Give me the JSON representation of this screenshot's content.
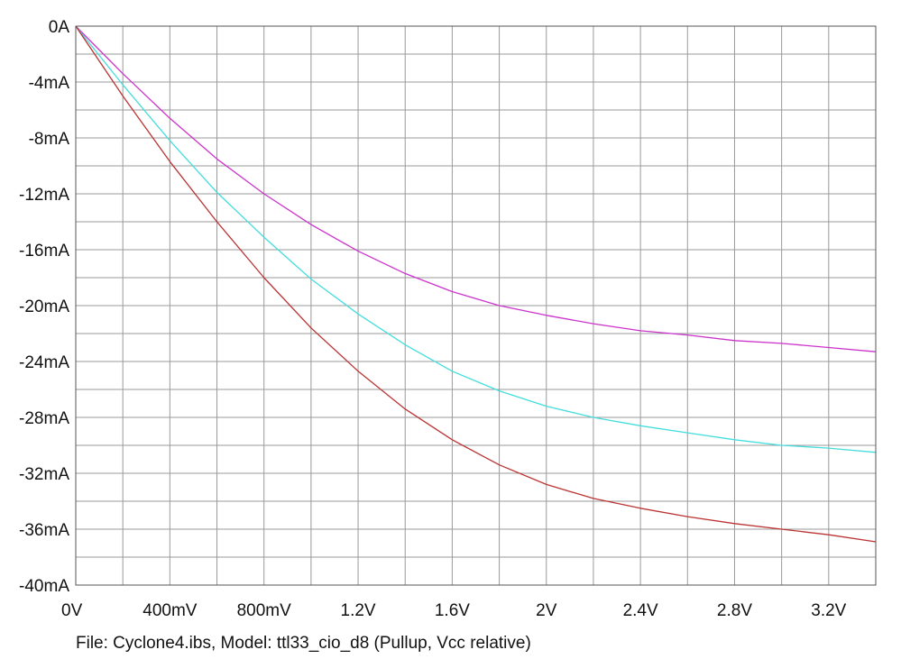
{
  "caption": "File: Cyclone4.ibs, Model: ttl33_cio_d8 (Pullup, Vcc relative)",
  "chart_data": {
    "type": "line",
    "title": "",
    "xlabel": "",
    "ylabel": "",
    "xlim": [
      0,
      3.4
    ],
    "ylim": [
      -40,
      0
    ],
    "grid": true,
    "legend": "none",
    "x_ticks": [
      {
        "value": 0,
        "label": "0V"
      },
      {
        "value": 0.4,
        "label": "400mV"
      },
      {
        "value": 0.8,
        "label": "800mV"
      },
      {
        "value": 1.2,
        "label": "1.2V"
      },
      {
        "value": 1.6,
        "label": "1.6V"
      },
      {
        "value": 2.0,
        "label": "2V"
      },
      {
        "value": 2.4,
        "label": "2.4V"
      },
      {
        "value": 2.8,
        "label": "2.8V"
      },
      {
        "value": 3.2,
        "label": "3.2V"
      }
    ],
    "y_ticks": [
      {
        "value": 0,
        "label": "0A"
      },
      {
        "value": -4,
        "label": "-4mA"
      },
      {
        "value": -8,
        "label": "-8mA"
      },
      {
        "value": -12,
        "label": "-12mA"
      },
      {
        "value": -16,
        "label": "-16mA"
      },
      {
        "value": -20,
        "label": "-20mA"
      },
      {
        "value": -24,
        "label": "-24mA"
      },
      {
        "value": -28,
        "label": "-28mA"
      },
      {
        "value": -32,
        "label": "-32mA"
      },
      {
        "value": -36,
        "label": "-36mA"
      },
      {
        "value": -40,
        "label": "-40mA"
      }
    ],
    "series": [
      {
        "color": "#cc33cc",
        "x": [
          0,
          0.2,
          0.4,
          0.6,
          0.8,
          1.0,
          1.2,
          1.4,
          1.6,
          1.8,
          2.0,
          2.2,
          2.4,
          2.6,
          2.8,
          3.0,
          3.2,
          3.4
        ],
        "y": [
          0,
          -3.4,
          -6.6,
          -9.5,
          -12.0,
          -14.2,
          -16.1,
          -17.7,
          -19.0,
          -20.0,
          -20.7,
          -21.3,
          -21.8,
          -22.1,
          -22.5,
          -22.7,
          -23.0,
          -23.3
        ]
      },
      {
        "color": "#44dddd",
        "x": [
          0,
          0.2,
          0.4,
          0.6,
          0.8,
          1.0,
          1.2,
          1.4,
          1.6,
          1.8,
          2.0,
          2.2,
          2.4,
          2.6,
          2.8,
          3.0,
          3.2,
          3.4
        ],
        "y": [
          0,
          -4.2,
          -8.2,
          -11.9,
          -15.1,
          -18.1,
          -20.6,
          -22.8,
          -24.7,
          -26.1,
          -27.2,
          -28.0,
          -28.6,
          -29.1,
          -29.6,
          -30.0,
          -30.2,
          -30.5
        ]
      },
      {
        "color": "#bb3333",
        "x": [
          0,
          0.2,
          0.4,
          0.6,
          0.8,
          1.0,
          1.2,
          1.4,
          1.6,
          1.8,
          2.0,
          2.2,
          2.4,
          2.6,
          2.8,
          3.0,
          3.2,
          3.4
        ],
        "y": [
          0,
          -5.0,
          -9.7,
          -14.0,
          -18.0,
          -21.6,
          -24.7,
          -27.4,
          -29.6,
          -31.4,
          -32.8,
          -33.8,
          -34.5,
          -35.1,
          -35.6,
          -36.0,
          -36.4,
          -36.9
        ]
      }
    ]
  }
}
